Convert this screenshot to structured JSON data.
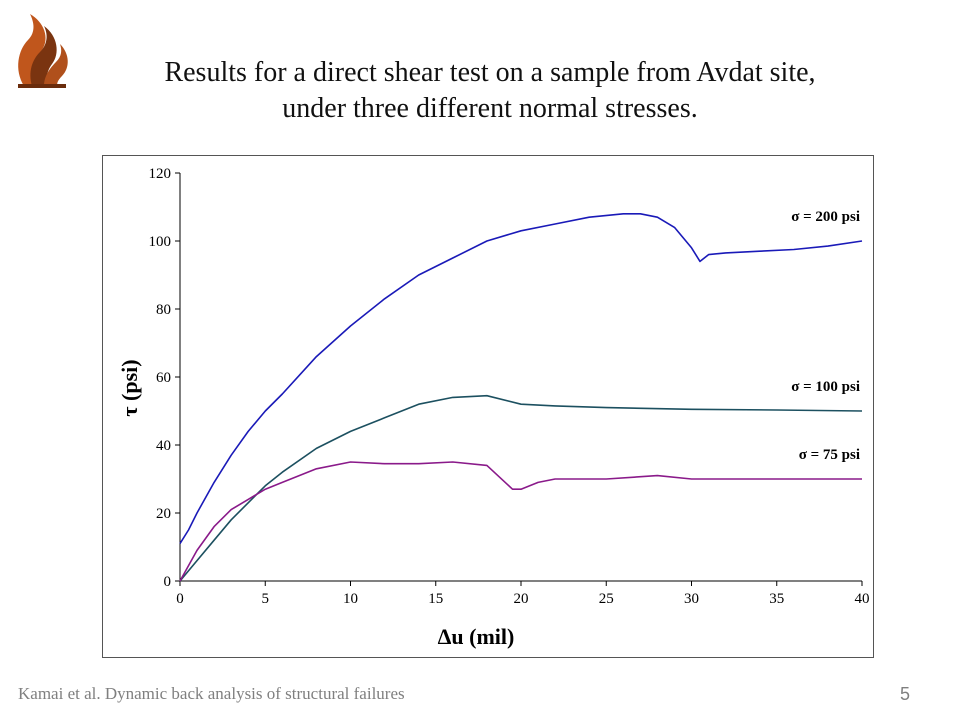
{
  "slide": {
    "title": "Results for a direct shear test on a sample from Avdat site, under three different normal stresses.",
    "footer": "Kamai et al. Dynamic back analysis of structural failures",
    "page_number": "5",
    "logo_icon": "university-flame-logo-icon"
  },
  "chart_data": {
    "type": "line",
    "title": "",
    "xlabel": "Δu (mil)",
    "ylabel": "τ (psi)",
    "xlim": [
      0,
      40
    ],
    "ylim": [
      0,
      120
    ],
    "xticks": [
      0,
      5,
      10,
      15,
      20,
      25,
      30,
      35,
      40
    ],
    "yticks": [
      0,
      20,
      40,
      60,
      80,
      100,
      120
    ],
    "grid": false,
    "legend": "labels at line ends (right)",
    "series": [
      {
        "name": "σ = 200 psi",
        "color": "#1a1ab8",
        "x": [
          0,
          0.5,
          1,
          2,
          3,
          4,
          5,
          6,
          8,
          10,
          12,
          14,
          16,
          18,
          20,
          22,
          24,
          26,
          27,
          28,
          29,
          30,
          30.5,
          31,
          32,
          34,
          36,
          38,
          40
        ],
        "y": [
          11,
          15,
          20,
          29,
          37,
          44,
          50,
          55,
          66,
          75,
          83,
          90,
          95,
          100,
          103,
          105,
          107,
          108,
          108,
          107,
          104,
          98,
          94,
          96,
          96.5,
          97,
          97.5,
          98.5,
          100
        ]
      },
      {
        "name": "σ = 100 psi",
        "color": "#1c5060",
        "x": [
          0,
          1,
          2,
          3,
          4,
          5,
          6,
          8,
          10,
          12,
          14,
          16,
          18,
          20,
          22,
          25,
          30,
          35,
          40
        ],
        "y": [
          0,
          6,
          12,
          18,
          23,
          28,
          32,
          39,
          44,
          48,
          52,
          54,
          54.5,
          52,
          51.5,
          51,
          50.5,
          50.3,
          50
        ]
      },
      {
        "name": "σ = 75 psi",
        "color": "#8a1a8a",
        "x": [
          0,
          1,
          2,
          3,
          4,
          5,
          6,
          8,
          10,
          12,
          14,
          16,
          18,
          19.5,
          20,
          21,
          22,
          25,
          28,
          30,
          35,
          40
        ],
        "y": [
          0,
          9,
          16,
          21,
          24,
          27,
          29,
          33,
          35,
          34.5,
          34.5,
          35,
          34,
          27,
          27,
          29,
          30,
          30,
          31,
          30,
          30,
          30
        ]
      }
    ]
  }
}
